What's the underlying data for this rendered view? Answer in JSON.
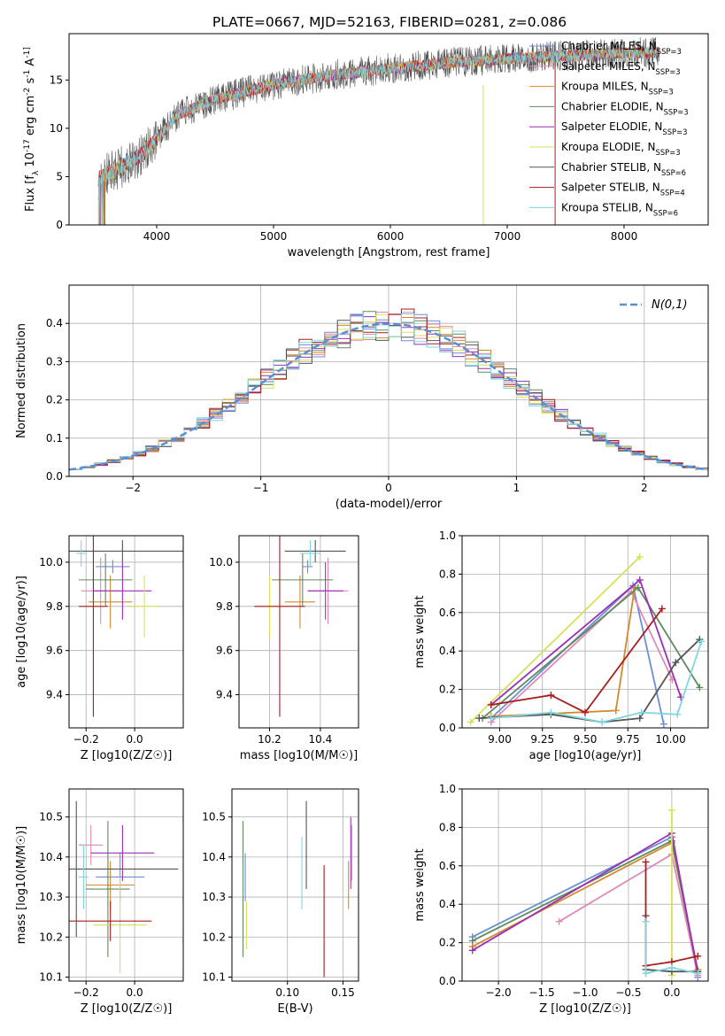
{
  "figure_title": "PLATE=0667, MJD=52163, FIBERID=0281, z=0.086",
  "series_names": [
    "Chabrier MILES, N_SSP=3",
    "Salpeter MILES, N_SSP=3",
    "Kroupa MILES, N_SSP=3",
    "Chabrier ELODIE, N_SSP=3",
    "Salpeter ELODIE, N_SSP=3",
    "Kroupa ELODIE, N_SSP=3",
    "Chabrier STELIB, N_SSP=6",
    "Salpeter STELIB, N_SSP=4",
    "Kroupa STELIB, N_SSP=6"
  ],
  "series_colors": [
    "#6b8fd6",
    "#e08ab8",
    "#d48a2c",
    "#5e8a5e",
    "#9b2fb5",
    "#d9e055",
    "#555555",
    "#a81d1d",
    "#7fd6e0"
  ],
  "chart_data": [
    {
      "type": "line",
      "name": "spectrum",
      "xlabel": "wavelength [Angstrom, rest frame]",
      "ylabel": "Flux [f_λ 10^-17 erg cm^-2 s^-1 A^-1]",
      "xlim": [
        3250,
        8720
      ],
      "ylim": [
        0,
        19.8
      ],
      "xticks": [
        4000,
        5000,
        6000,
        7000,
        8000
      ],
      "yticks": [
        0,
        5,
        10,
        15
      ],
      "legend": "top-right",
      "continuum": {
        "x": [
          3500,
          3700,
          3900,
          4000,
          4200,
          4500,
          5000,
          5500,
          6000,
          6500,
          7000,
          7500,
          8000,
          8300
        ],
        "y": [
          4.8,
          6.0,
          7.5,
          9.0,
          11.5,
          13.0,
          14.5,
          15.5,
          16.2,
          16.8,
          17.2,
          17.5,
          17.8,
          17.9
        ]
      },
      "spikes": [
        {
          "x": 6795,
          "ymin": 0,
          "ymax": 14.5,
          "series": 5
        },
        {
          "x": 7410,
          "ymin": 0,
          "ymax": 17.5,
          "series": 7
        }
      ]
    },
    {
      "type": "line",
      "name": "residual-histogram",
      "xlabel": "(data-model)/error",
      "ylabel": "Normed distribution",
      "xlim": [
        -2.5,
        2.5
      ],
      "ylim": [
        0,
        0.5
      ],
      "xticks": [
        -2,
        -1,
        0,
        1,
        2
      ],
      "yticks": [
        0.0,
        0.1,
        0.2,
        0.3,
        0.4
      ],
      "grid": true,
      "legend": "top-right",
      "legend_label": "N(0,1)",
      "gaussian": {
        "mean": 0,
        "sigma": 1
      }
    },
    {
      "type": "scatter",
      "name": "age-vs-z",
      "xlabel": "Z [log10(Z/Z☉)]",
      "ylabel": "age [log10(age/yr)]",
      "xlim": [
        -0.27,
        0.2
      ],
      "ylim": [
        9.25,
        10.12
      ],
      "xticks": [
        -0.2,
        0.0
      ],
      "yticks": [
        9.4,
        9.6,
        9.8,
        10.0
      ],
      "grid": true,
      "points": [
        {
          "x": -0.09,
          "y": 9.98,
          "xerr": 0.07,
          "yerr": 0.03,
          "series": 0
        },
        {
          "x": -0.14,
          "y": 9.87,
          "xerr": 0.08,
          "yerr": 0.15,
          "series": 1
        },
        {
          "x": -0.1,
          "y": 9.82,
          "xerr": 0.09,
          "yerr": 0.12,
          "series": 2
        },
        {
          "x": -0.12,
          "y": 9.92,
          "xerr": 0.11,
          "yerr": 0.12,
          "series": 3
        },
        {
          "x": -0.05,
          "y": 9.87,
          "xerr": 0.12,
          "yerr": 0.13,
          "series": 4
        },
        {
          "x": 0.04,
          "y": 9.8,
          "xerr": 0.06,
          "yerr": 0.14,
          "series": 5
        },
        {
          "x": -0.05,
          "y": 10.05,
          "xerr": 0.25,
          "yerr": 0.05,
          "series": 6
        },
        {
          "x": -0.17,
          "y": 9.8,
          "xerr": 0.06,
          "yerr": 0.5,
          "series": 7
        },
        {
          "x": -0.22,
          "y": 10.04,
          "xerr": 0.02,
          "yerr": 0.06,
          "series": 8
        }
      ]
    },
    {
      "type": "scatter",
      "name": "age-vs-mass",
      "xlabel": "mass [log10(M/M☉)]",
      "ylabel": "",
      "xlim": [
        10.08,
        10.55
      ],
      "ylim": [
        9.25,
        10.12
      ],
      "xticks": [
        10.2,
        10.4
      ],
      "yticks": [
        9.4,
        9.6,
        9.8,
        10.0
      ],
      "grid": true,
      "points": [
        {
          "x": 10.35,
          "y": 9.98,
          "xerr": 0.02,
          "yerr": 0.03,
          "series": 0
        },
        {
          "x": 10.43,
          "y": 9.87,
          "xerr": 0.08,
          "yerr": 0.15,
          "series": 1
        },
        {
          "x": 10.32,
          "y": 9.82,
          "xerr": 0.06,
          "yerr": 0.12,
          "series": 2
        },
        {
          "x": 10.33,
          "y": 9.92,
          "xerr": 0.12,
          "yerr": 0.12,
          "series": 3
        },
        {
          "x": 10.42,
          "y": 9.87,
          "xerr": 0.07,
          "yerr": 0.13,
          "series": 4
        },
        {
          "x": 10.2,
          "y": 9.8,
          "xerr": 0.04,
          "yerr": 0.14,
          "series": 5
        },
        {
          "x": 10.38,
          "y": 10.05,
          "xerr": 0.12,
          "yerr": 0.05,
          "series": 6
        },
        {
          "x": 10.24,
          "y": 9.8,
          "xerr": 0.1,
          "yerr": 0.5,
          "series": 7
        },
        {
          "x": 10.36,
          "y": 10.04,
          "xerr": 0.04,
          "yerr": 0.06,
          "series": 8
        }
      ]
    },
    {
      "type": "line",
      "name": "mass-weight-vs-age",
      "xlabel": "age [log10(age/yr)]",
      "ylabel": "mass weight",
      "xlim": [
        8.78,
        10.22
      ],
      "ylim": [
        0,
        1.0
      ],
      "xticks": [
        9.0,
        9.25,
        9.5,
        9.75,
        10.0
      ],
      "yticks": [
        0.0,
        0.2,
        0.4,
        0.6,
        0.8,
        1.0
      ],
      "grid": true,
      "series": [
        {
          "series": 0,
          "x": [
            8.95,
            9.78,
            9.96
          ],
          "y": [
            0.05,
            0.74,
            0.02
          ]
        },
        {
          "series": 1,
          "x": [
            8.95,
            9.77,
            10.01
          ],
          "y": [
            0.03,
            0.71,
            0.25
          ]
        },
        {
          "series": 2,
          "x": [
            8.95,
            9.68,
            9.79
          ],
          "y": [
            0.06,
            0.09,
            0.73
          ]
        },
        {
          "series": 3,
          "x": [
            8.9,
            9.81,
            10.17
          ],
          "y": [
            0.05,
            0.73,
            0.21
          ]
        },
        {
          "series": 4,
          "x": [
            8.95,
            9.82,
            10.06
          ],
          "y": [
            0.12,
            0.77,
            0.16
          ]
        },
        {
          "series": 5,
          "x": [
            8.83,
            9.82
          ],
          "y": [
            0.03,
            0.89
          ]
        },
        {
          "series": 6,
          "x": [
            8.88,
            9.3,
            9.6,
            9.82,
            10.03,
            10.17
          ],
          "y": [
            0.05,
            0.07,
            0.03,
            0.05,
            0.34,
            0.46
          ]
        },
        {
          "series": 7,
          "x": [
            8.95,
            9.3,
            9.5,
            9.95
          ],
          "y": [
            0.12,
            0.17,
            0.08,
            0.62
          ]
        },
        {
          "series": 8,
          "x": [
            8.95,
            9.3,
            9.6,
            9.83,
            10.04,
            10.18
          ],
          "y": [
            0.05,
            0.08,
            0.03,
            0.08,
            0.07,
            0.45
          ]
        }
      ]
    },
    {
      "type": "scatter",
      "name": "mass-vs-z",
      "xlabel": "Z [log10(Z/Z☉)]",
      "ylabel": "mass [log10(M/M☉)]",
      "xlim": [
        -0.27,
        0.2
      ],
      "ylim": [
        10.09,
        10.57
      ],
      "xticks": [
        -0.2,
        0.0
      ],
      "yticks": [
        10.1,
        10.2,
        10.3,
        10.4,
        10.5
      ],
      "grid": true,
      "points": [
        {
          "x": -0.06,
          "y": 10.35,
          "xerr": 0.1,
          "yerr": 0.06,
          "series": 0
        },
        {
          "x": -0.18,
          "y": 10.43,
          "xerr": 0.05,
          "yerr": 0.05,
          "series": 1
        },
        {
          "x": -0.1,
          "y": 10.33,
          "xerr": 0.1,
          "yerr": 0.06,
          "series": 2
        },
        {
          "x": -0.11,
          "y": 10.32,
          "xerr": 0.09,
          "yerr": 0.17,
          "series": 3
        },
        {
          "x": -0.05,
          "y": 10.41,
          "xerr": 0.13,
          "yerr": 0.07,
          "series": 4
        },
        {
          "x": -0.06,
          "y": 10.23,
          "xerr": 0.11,
          "yerr": 0.12,
          "series": 5
        },
        {
          "x": -0.24,
          "y": 10.37,
          "xerr": 0.42,
          "yerr": 0.17,
          "series": 6
        },
        {
          "x": -0.1,
          "y": 10.24,
          "xerr": 0.17,
          "yerr": 0.05,
          "series": 7
        },
        {
          "x": -0.21,
          "y": 10.35,
          "xerr": 0.02,
          "yerr": 0.08,
          "series": 8
        }
      ]
    },
    {
      "type": "scatter",
      "name": "mass-vs-ebv",
      "xlabel": "E(B-V)",
      "ylabel": "",
      "xlim": [
        0.05,
        0.164
      ],
      "ylim": [
        10.09,
        10.57
      ],
      "xticks": [
        0.1,
        0.15
      ],
      "yticks": [
        10.1,
        10.2,
        10.3,
        10.4,
        10.5
      ],
      "grid": true,
      "points": [
        {
          "x": 0.062,
          "y": 10.35,
          "yerr": 0.06,
          "series": 0
        },
        {
          "x": 0.158,
          "y": 10.41,
          "yerr": 0.07,
          "series": 1
        },
        {
          "x": 0.155,
          "y": 10.33,
          "yerr": 0.06,
          "series": 2
        },
        {
          "x": 0.06,
          "y": 10.32,
          "yerr": 0.17,
          "series": 3
        },
        {
          "x": 0.157,
          "y": 10.41,
          "yerr": 0.09,
          "series": 4
        },
        {
          "x": 0.063,
          "y": 10.23,
          "yerr": 0.06,
          "series": 5
        },
        {
          "x": 0.117,
          "y": 10.43,
          "yerr": 0.11,
          "series": 6
        },
        {
          "x": 0.133,
          "y": 10.24,
          "yerr": 0.14,
          "series": 7
        },
        {
          "x": 0.113,
          "y": 10.36,
          "yerr": 0.09,
          "series": 8
        }
      ]
    },
    {
      "type": "line",
      "name": "mass-weight-vs-z",
      "xlabel": "Z [log10(Z/Z☉)]",
      "ylabel": "mass weight",
      "xlim": [
        -2.42,
        0.42
      ],
      "ylim": [
        0,
        1.0
      ],
      "xticks": [
        -2.0,
        -1.5,
        -1.0,
        -0.5,
        0.0
      ],
      "yticks": [
        0.0,
        0.2,
        0.4,
        0.6,
        0.8,
        1.0
      ],
      "grid": true,
      "series": [
        {
          "series": 0,
          "x": [
            -2.3,
            0.0,
            0.3
          ],
          "y": [
            0.23,
            0.75,
            0.02
          ]
        },
        {
          "series": 1,
          "x": [
            -1.3,
            0.0,
            0.3
          ],
          "y": [
            0.31,
            0.66,
            0.03
          ]
        },
        {
          "series": 2,
          "x": [
            -2.3,
            0.0,
            0.3
          ],
          "y": [
            0.18,
            0.72,
            0.06
          ]
        },
        {
          "series": 3,
          "x": [
            -2.3,
            0.0,
            0.3
          ],
          "y": [
            0.21,
            0.73,
            0.05
          ]
        },
        {
          "series": 4,
          "x": [
            -2.3,
            0.0,
            0.3
          ],
          "y": [
            0.16,
            0.77,
            0.04
          ]
        },
        {
          "series": 5,
          "x": [
            0.0,
            0.0,
            0.0
          ],
          "y": [
            0.89,
            0.05,
            0.03
          ]
        },
        {
          "series": 6,
          "x": [
            -0.3,
            -0.3,
            0.0,
            0.3
          ],
          "y": [
            0.34,
            0.06,
            0.05,
            0.05
          ]
        },
        {
          "series": 7,
          "x": [
            -0.3,
            -0.3,
            0.0,
            0.3
          ],
          "y": [
            0.62,
            0.08,
            0.1,
            0.13
          ]
        },
        {
          "series": 8,
          "x": [
            -0.3,
            -0.3,
            0.0,
            0.3
          ],
          "y": [
            0.31,
            0.04,
            0.07,
            0.04
          ]
        }
      ]
    }
  ]
}
